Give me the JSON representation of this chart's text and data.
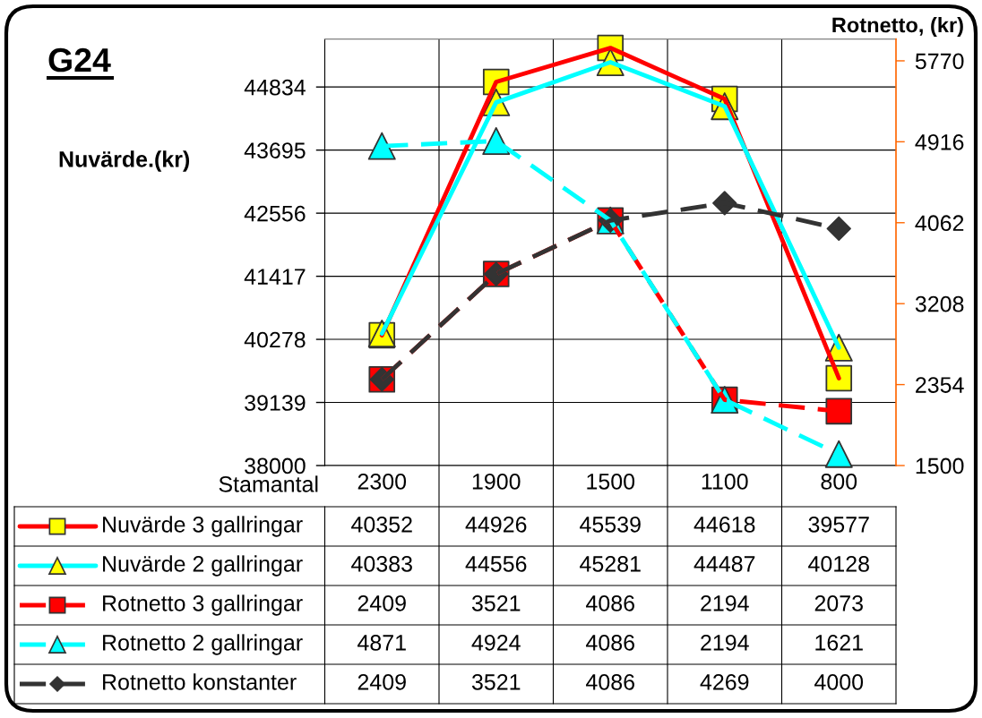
{
  "chart_data": {
    "type": "line",
    "title": "G24",
    "xlabel": "Stamantal",
    "ylabel": "Nuvärde.(kr)",
    "y2label": "Rotnetto, (kr)",
    "categories": [
      "2300",
      "1900",
      "1500",
      "1100",
      "800"
    ],
    "series": [
      {
        "name": "Nuvärde 3 gallringar",
        "color": "#ff0000",
        "colors": [
          "#ffff00",
          "#ffff00",
          "#ffff00",
          "#ffff00",
          "#ffff00"
        ],
        "marker": "square",
        "line_style": "solid",
        "values": [
          40352,
          44926,
          45539,
          44618,
          39577
        ]
      },
      {
        "name": "Nuvärde 2 gallringar",
        "color": "#00ffff",
        "colors": [
          "#ffff00",
          "#ffff00",
          "#ffff00",
          "#ffff00",
          "#ffff00"
        ],
        "marker": "triangle",
        "line_style": "solid",
        "values": [
          40383,
          44556,
          45281,
          44487,
          40128
        ]
      },
      {
        "name": "Rotnetto 3 gallringar",
        "axis": "y2",
        "color": "#ff0000",
        "colors": [
          "#ff0000",
          "#ff0000",
          "#ff0000",
          "#ff0000",
          "#ff0000"
        ],
        "marker": "square",
        "line_style": "dashed",
        "values": [
          2409,
          3521,
          4086,
          2194,
          2073
        ]
      },
      {
        "name": "Rotnetto 2 gallringar",
        "axis": "y2",
        "color": "#00ffff",
        "colors": [
          "#00ffff",
          "#00ffff",
          "#00ffff",
          "#00ffff",
          "#00ffff"
        ],
        "marker": "triangle",
        "line_style": "dashed",
        "values": [
          4871,
          4924,
          4086,
          2194,
          1621
        ]
      },
      {
        "name": "Rotnetto konstanter",
        "axis": "y2",
        "color": "#333333",
        "colors": [
          "#333333",
          "#333333",
          "#333333",
          "#333333",
          "#333333"
        ],
        "marker": "diamond",
        "line_style": "dashed",
        "values": [
          2409,
          3521,
          4086,
          4269,
          4000
        ]
      }
    ],
    "ylim": [
      38000,
      45700
    ],
    "yticks": [
      38000,
      39139,
      40278,
      41417,
      42556,
      43695,
      44834
    ],
    "y2lim": [
      1500,
      6000
    ],
    "y2ticks": [
      1500,
      2354,
      3208,
      4062,
      4916,
      5770
    ],
    "grid": true,
    "legend": "bottom",
    "data_labels": true
  }
}
